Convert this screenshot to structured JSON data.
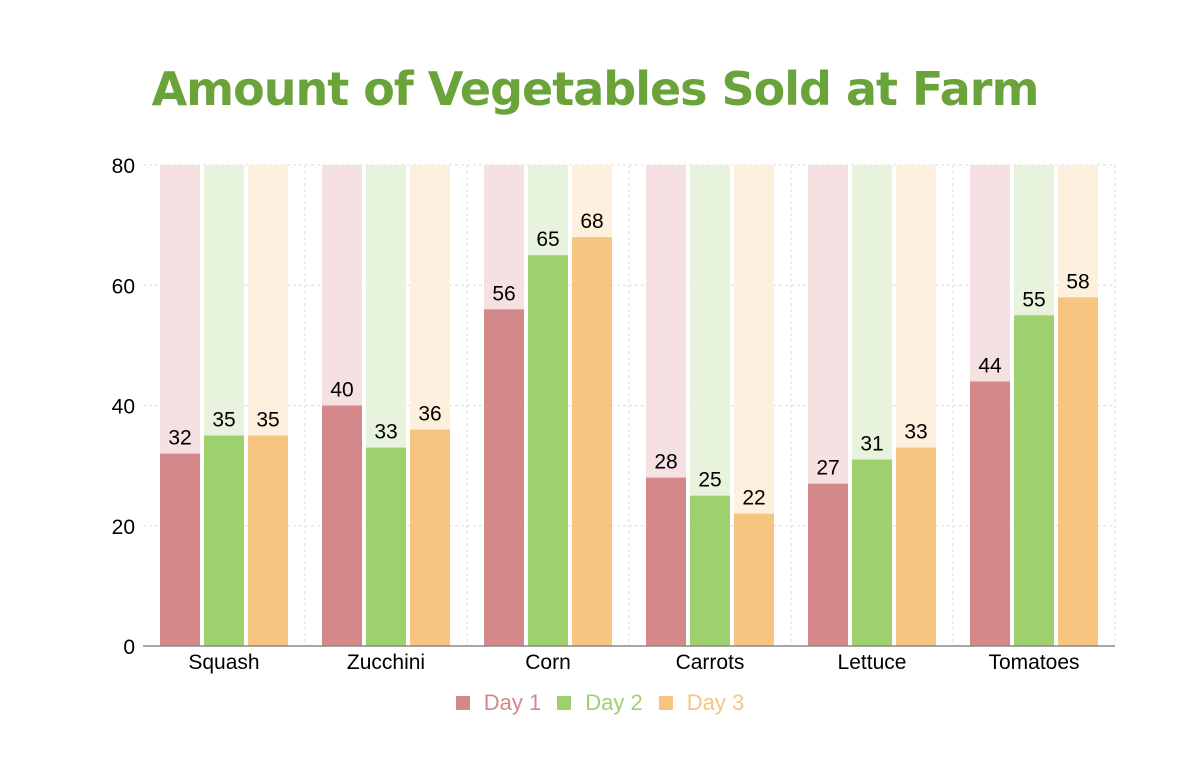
{
  "colors": {
    "title": "#6aa339",
    "axis": "#000000",
    "grid": "#dddddd"
  },
  "chart_data": {
    "type": "bar",
    "title": "Amount of Vegetables Sold at Farm",
    "xlabel": "",
    "ylabel": "",
    "ylim": [
      0,
      80
    ],
    "yticks": [
      0,
      20,
      40,
      60,
      80
    ],
    "categories": [
      "Squash",
      "Zucchini",
      "Corn",
      "Carrots",
      "Lettuce",
      "Tomatoes"
    ],
    "series": [
      {
        "name": "Day 1",
        "color": "#d4888a",
        "track_color": "#f5e1e2",
        "values": [
          32,
          40,
          56,
          28,
          27,
          44
        ]
      },
      {
        "name": "Day 2",
        "color": "#9ed06d",
        "track_color": "#e7f3dc",
        "values": [
          35,
          33,
          65,
          25,
          31,
          55
        ]
      },
      {
        "name": "Day 3",
        "color": "#f6c680",
        "track_color": "#fdf0de",
        "values": [
          35,
          36,
          68,
          22,
          33,
          58
        ]
      }
    ],
    "data_labels": true,
    "grid": true,
    "legend_position": "bottom"
  }
}
